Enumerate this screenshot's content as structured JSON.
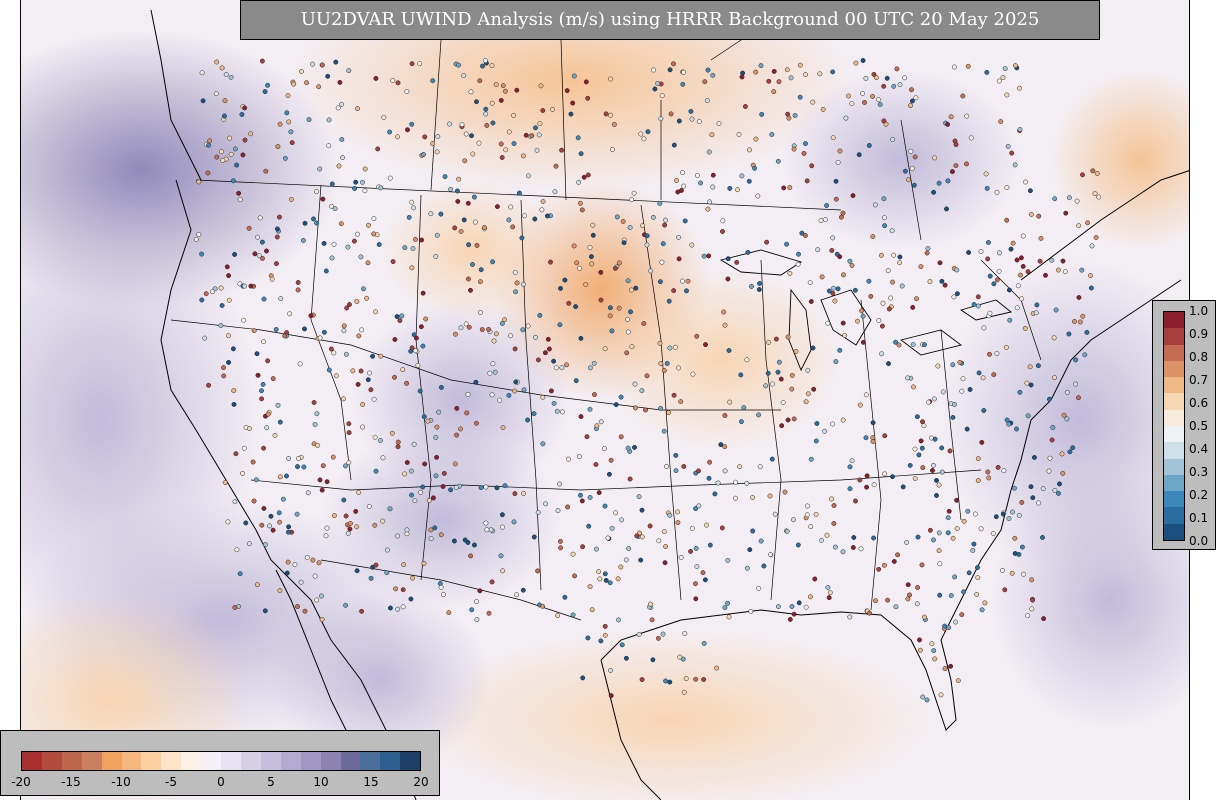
{
  "title": "UU2DVAR UWIND Analysis (m/s) using HRRR Background 00 UTC 20 May 2025",
  "wind_colorbar": {
    "ticks": [
      "-20",
      "-15",
      "-10",
      "-5",
      "0",
      "5",
      "10",
      "15",
      "20"
    ],
    "colors": [
      "#a8302e",
      "#b24a3e",
      "#bd654d",
      "#c97f60",
      "#f0a25e",
      "#f6b77e",
      "#fbcf9f",
      "#fde3c7",
      "#fbf1e6",
      "#f4f0f6",
      "#e6e2ef",
      "#d6d0e6",
      "#c5bddc",
      "#b3aad0",
      "#a197c3",
      "#8d83b3",
      "#6e6a9c",
      "#4a6f9b",
      "#2e5f8e",
      "#1d3e66"
    ]
  },
  "qc_colorbar": {
    "ticks": [
      "0.0",
      "0.1",
      "0.2",
      "0.3",
      "0.4",
      "0.5",
      "0.6",
      "0.7",
      "0.8",
      "0.9",
      "1.0"
    ],
    "colors": [
      "#1b4f80",
      "#2a6ea0",
      "#3d88ba",
      "#6ea6c8",
      "#a3c4d6",
      "#cfdfe8",
      "#eef2f4",
      "#f6ebdd",
      "#f5d6b2",
      "#efb887",
      "#dc9267",
      "#c56b53",
      "#a83f3f",
      "#8c1f2e"
    ]
  },
  "map": {
    "ocean_west_color": "#e4e0ef",
    "ocean_east_color": "#e9e6f1",
    "land_color": "#faf4ee",
    "station_count_shown": 1400
  }
}
